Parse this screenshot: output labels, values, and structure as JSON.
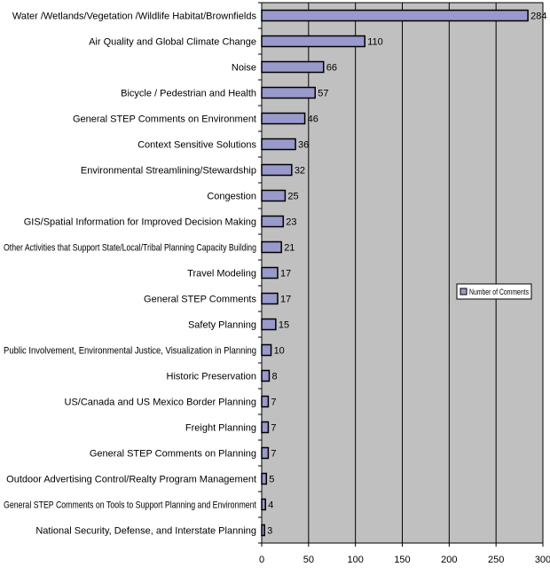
{
  "chart_data": {
    "type": "bar",
    "orientation": "horizontal",
    "categories": [
      "Water /Wetlands/Vegetation /Wildlife Habitat/Brownfields",
      "Air Quality and Global Climate Change",
      "Noise",
      "Bicycle / Pedestrian and Health",
      "General STEP Comments on Environment",
      "Context Sensitive Solutions",
      "Environmental Streamlining/Stewardship",
      "Congestion",
      "GIS/Spatial Information for Improved Decision Making",
      "Other Activities that Support State/Local/Tribal Planning Capacity Building",
      "Travel Modeling",
      "General STEP Comments",
      "Safety Planning",
      "Public Involvement, Environmental Justice, Visualization in Planning",
      "Historic Preservation",
      "US/Canada and US Mexico Border Planning",
      "Freight Planning",
      "General STEP Comments on Planning",
      "Outdoor Advertising Control/Realty Program Management",
      "General STEP Comments on Tools to Support Planning and Environment",
      "National Security, Defense, and Interstate Planning"
    ],
    "series": [
      {
        "name": "Number of Comments",
        "values": [
          284,
          110,
          66,
          57,
          46,
          36,
          32,
          25,
          23,
          21,
          17,
          17,
          15,
          10,
          8,
          7,
          7,
          7,
          5,
          4,
          3
        ]
      }
    ],
    "xlim": [
      0,
      300
    ],
    "xticks": [
      0,
      50,
      100,
      150,
      200,
      250,
      300
    ],
    "grid": "vertical",
    "legend_position": "right",
    "colors": {
      "bar": "#9999cc",
      "bar_border": "#000000",
      "plot_background": "#c0c0c0",
      "gridline": "#000000"
    }
  }
}
